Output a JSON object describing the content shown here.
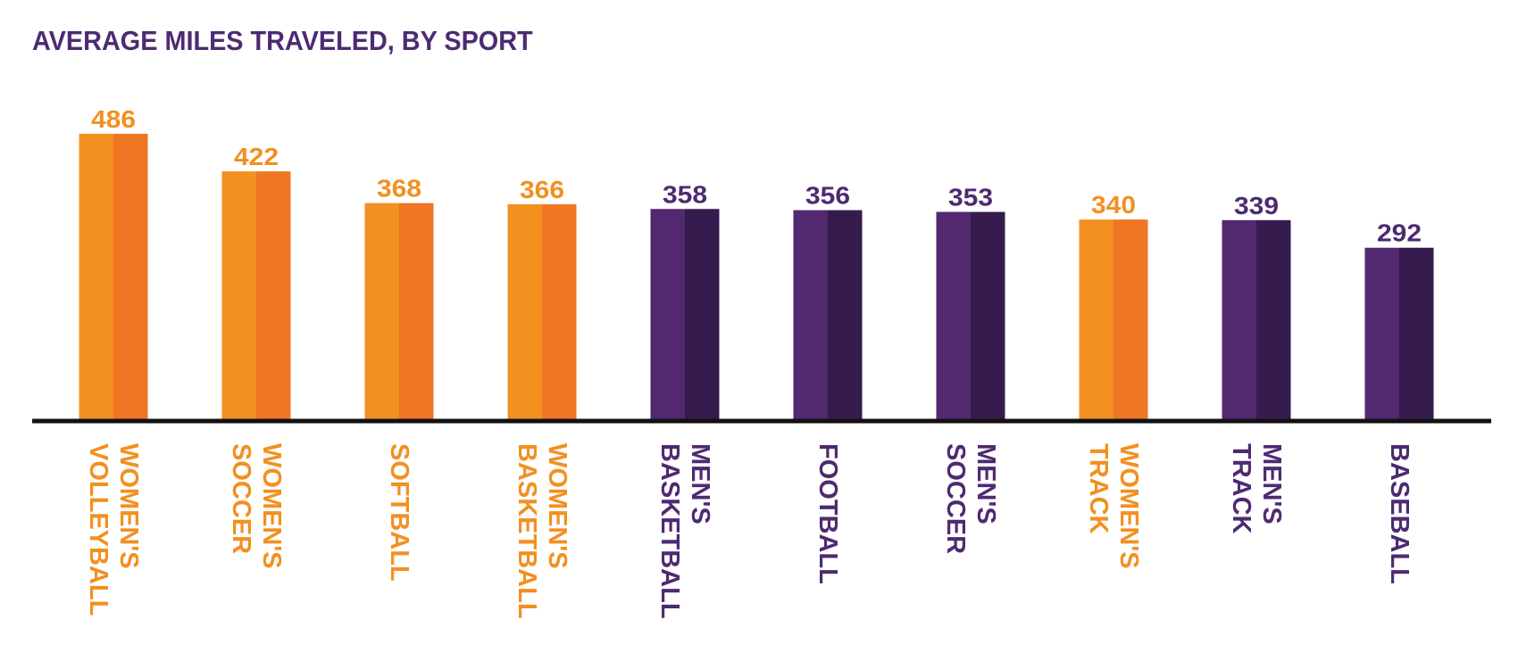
{
  "colors": {
    "women": "#f29020",
    "women_shade": "#ef7622",
    "men": "#52286f",
    "men_shade": "#361c4e",
    "women_label": "#f29020",
    "men_label": "#4e2a72",
    "axis": "#111111",
    "title": "#4e2a72"
  },
  "chart_data": {
    "type": "bar",
    "title": "AVERAGE MILES TRAVELED, BY SPORT",
    "xlabel": "",
    "ylabel": "",
    "ylim": [
      0,
      500
    ],
    "grid": false,
    "legend": "none",
    "series": [
      {
        "values": [
          486,
          422,
          368,
          366,
          358,
          356,
          353,
          340,
          339,
          292
        ]
      }
    ],
    "categories": [
      {
        "lines": [
          "WOMEN'S",
          "VOLLEYBALL"
        ],
        "value": 486,
        "group": "women"
      },
      {
        "lines": [
          "WOMEN'S",
          "SOCCER"
        ],
        "value": 422,
        "group": "women"
      },
      {
        "lines": [
          "SOFTBALL"
        ],
        "value": 368,
        "group": "women"
      },
      {
        "lines": [
          "WOMEN'S",
          "BASKETBALL"
        ],
        "value": 366,
        "group": "women"
      },
      {
        "lines": [
          "MEN'S",
          "BASKETBALL"
        ],
        "value": 358,
        "group": "men"
      },
      {
        "lines": [
          "FOOTBALL"
        ],
        "value": 356,
        "group": "men"
      },
      {
        "lines": [
          "MEN'S",
          "SOCCER"
        ],
        "value": 353,
        "group": "men"
      },
      {
        "lines": [
          "WOMEN'S",
          "TRACK"
        ],
        "value": 340,
        "group": "women"
      },
      {
        "lines": [
          "MEN'S",
          "TRACK"
        ],
        "value": 339,
        "group": "men"
      },
      {
        "lines": [
          "BASEBALL"
        ],
        "value": 292,
        "group": "men"
      }
    ]
  }
}
